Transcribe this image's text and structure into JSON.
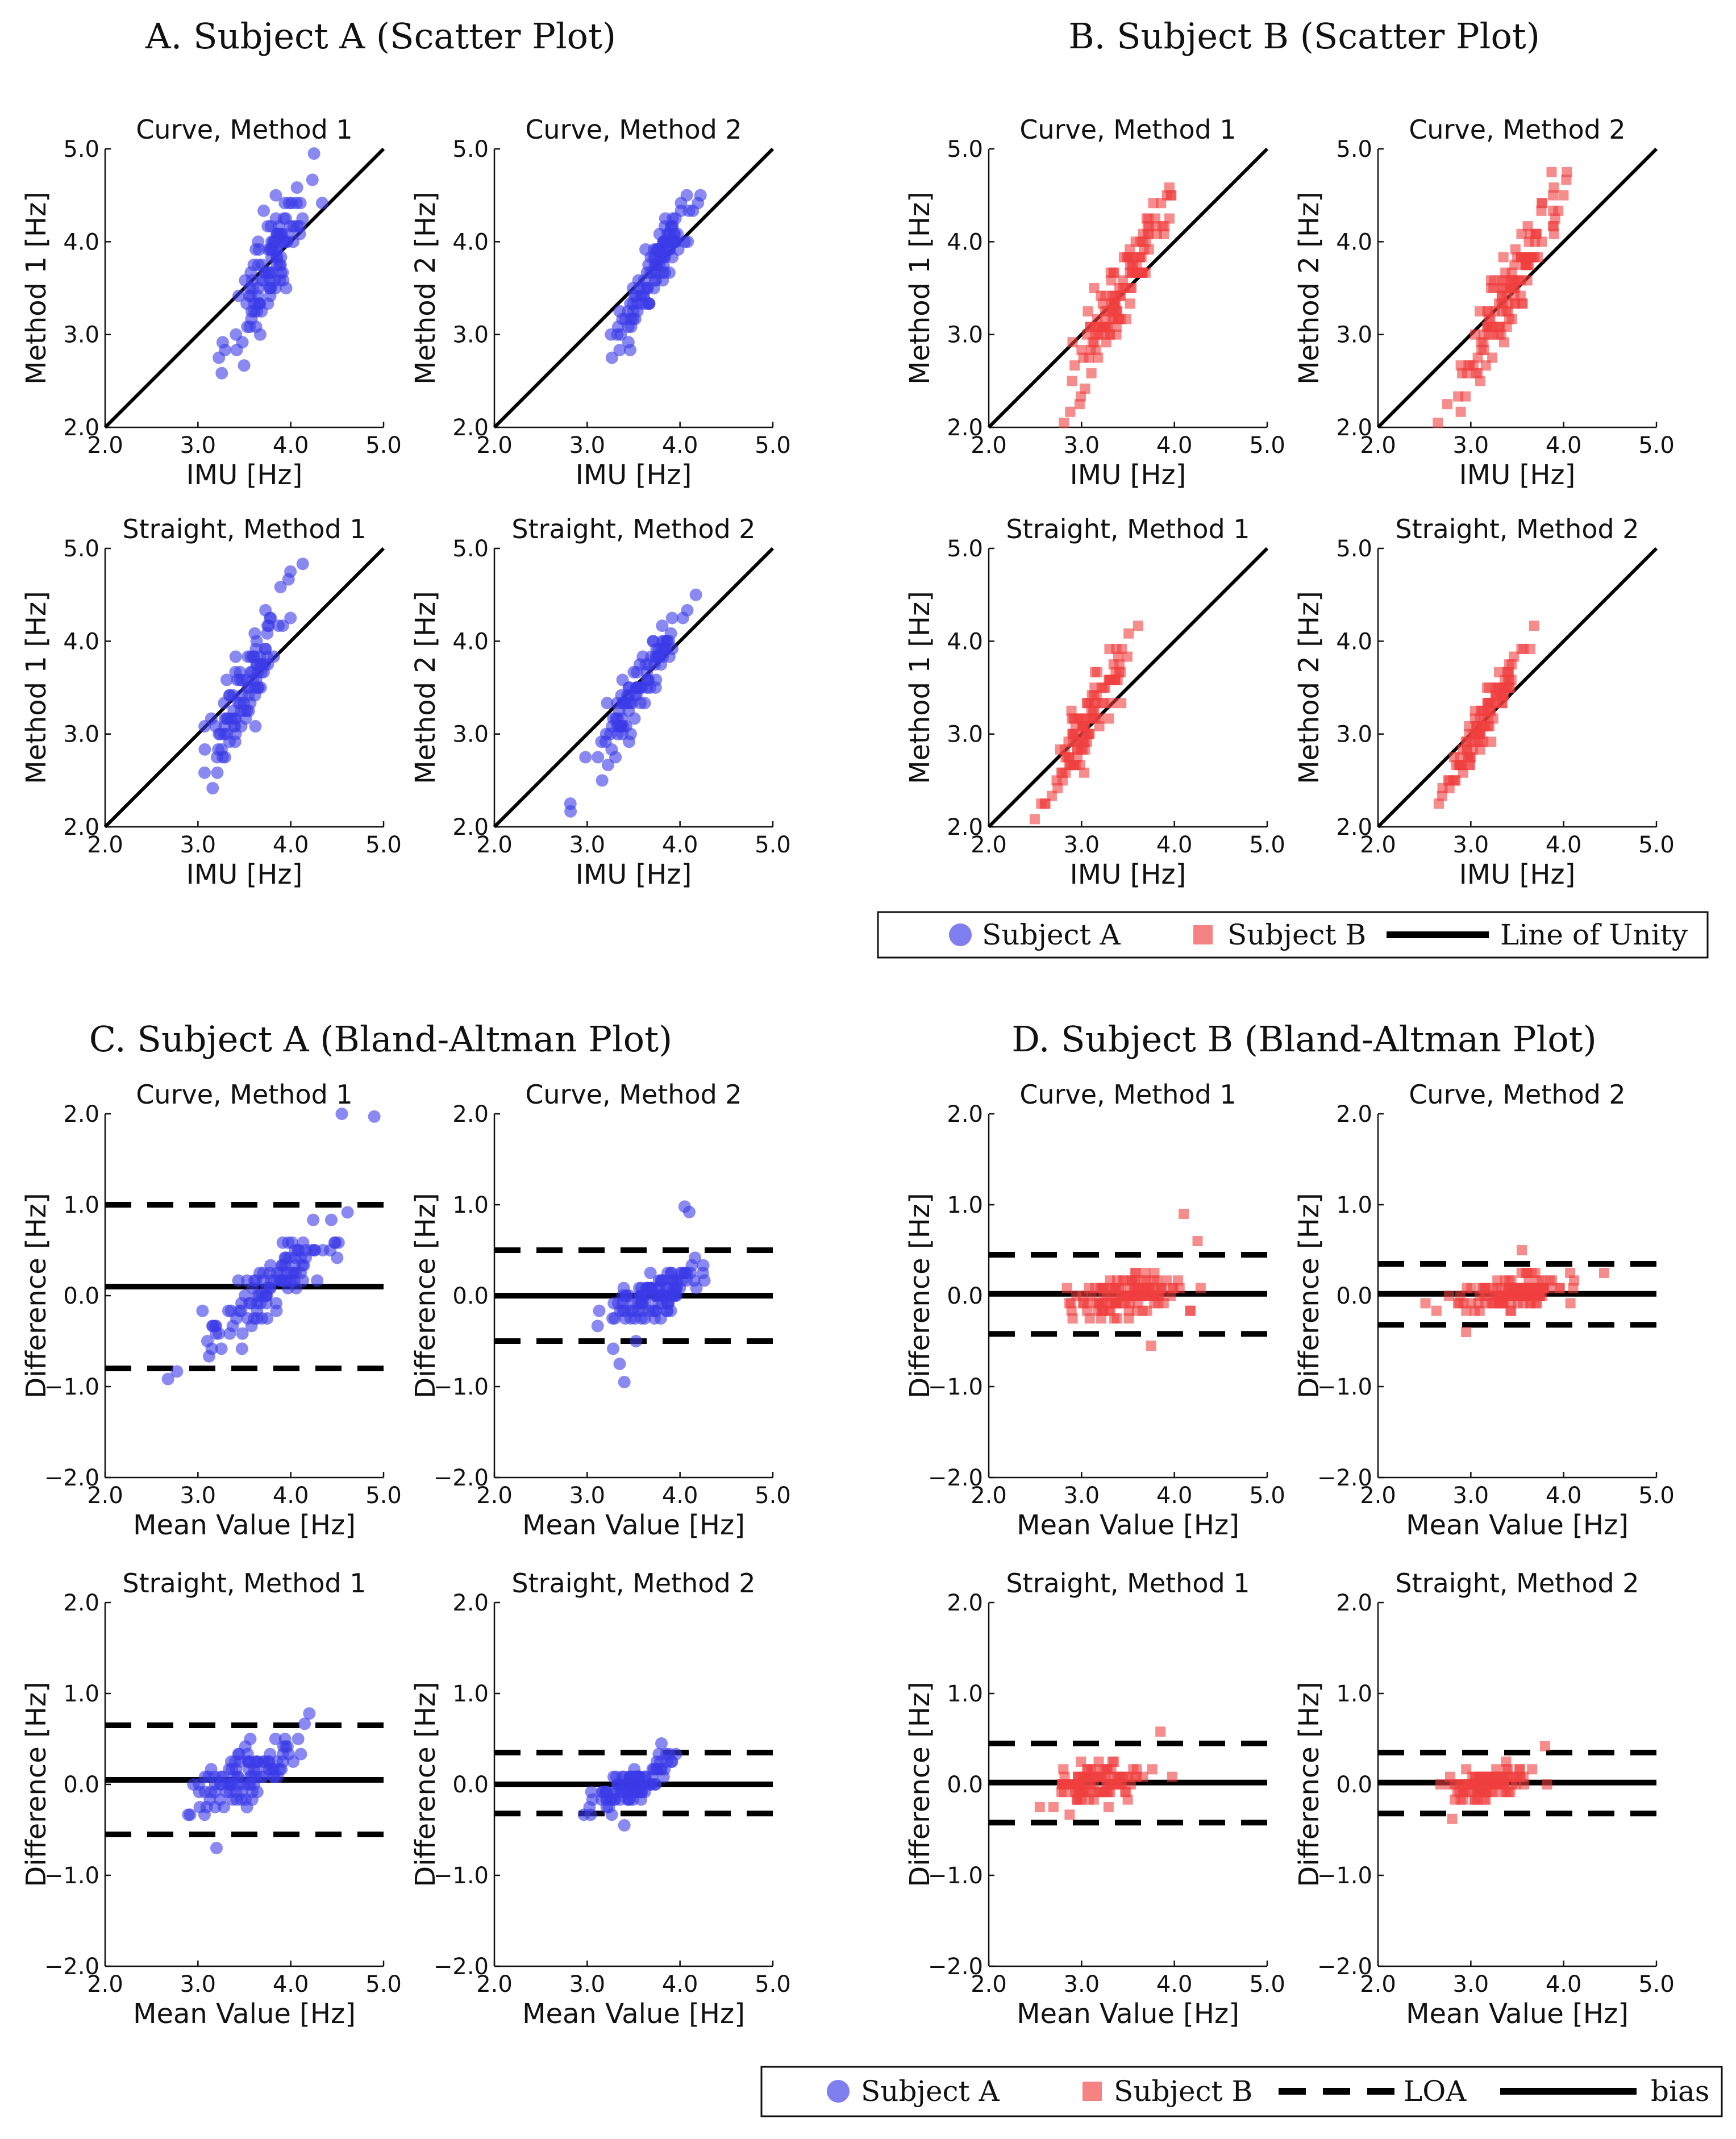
{
  "colors": {
    "subject_a": "#3a3ae8",
    "subject_b": "#f04040",
    "line": "#000000"
  },
  "chart_data": [
    {
      "id": "A",
      "title": "A. Subject A (Scatter Plot)",
      "type": "scatter",
      "subject": "A",
      "panels": [
        {
          "title": "Curve, Method 1",
          "xlabel": "IMU [Hz]",
          "ylabel": "Method 1 [Hz]",
          "xlim": [
            2.0,
            5.0
          ],
          "ylim": [
            2.0,
            5.0
          ],
          "xticks": [
            "2.0",
            "3.0",
            "4.0",
            "5.0"
          ],
          "yticks": [
            "2.0",
            "3.0",
            "4.0",
            "5.0"
          ],
          "unity": true,
          "cx": 3.75,
          "cy": 3.7,
          "sx": 0.22,
          "sy": 0.45,
          "n": 110,
          "seed": 11
        },
        {
          "title": "Curve, Method 2",
          "xlabel": "IMU [Hz]",
          "ylabel": "Method 2 [Hz]",
          "xlim": [
            2.0,
            5.0
          ],
          "ylim": [
            2.0,
            5.0
          ],
          "xticks": [
            "2.0",
            "3.0",
            "4.0",
            "5.0"
          ],
          "yticks": [
            "2.0",
            "3.0",
            "4.0",
            "5.0"
          ],
          "unity": true,
          "cx": 3.75,
          "cy": 3.75,
          "sx": 0.2,
          "sy": 0.3,
          "n": 110,
          "seed": 12
        },
        {
          "title": "Straight, Method 1",
          "xlabel": "IMU [Hz]",
          "ylabel": "Method 1 [Hz]",
          "xlim": [
            2.0,
            5.0
          ],
          "ylim": [
            2.0,
            5.0
          ],
          "xticks": [
            "2.0",
            "3.0",
            "4.0",
            "5.0"
          ],
          "yticks": [
            "2.0",
            "3.0",
            "4.0",
            "5.0"
          ],
          "unity": true,
          "cx": 3.5,
          "cy": 3.5,
          "sx": 0.22,
          "sy": 0.4,
          "n": 100,
          "seed": 13
        },
        {
          "title": "Straight, Method 2",
          "xlabel": "IMU [Hz]",
          "ylabel": "Method 2 [Hz]",
          "xlim": [
            2.0,
            5.0
          ],
          "ylim": [
            2.0,
            5.0
          ],
          "xticks": [
            "2.0",
            "3.0",
            "4.0",
            "5.0"
          ],
          "yticks": [
            "2.0",
            "3.0",
            "4.0",
            "5.0"
          ],
          "unity": true,
          "cx": 3.55,
          "cy": 3.5,
          "sx": 0.22,
          "sy": 0.3,
          "n": 100,
          "seed": 14
        }
      ]
    },
    {
      "id": "B",
      "title": "B. Subject B (Scatter Plot)",
      "type": "scatter",
      "subject": "B",
      "panels": [
        {
          "title": "Curve, Method 1",
          "xlabel": "IMU [Hz]",
          "ylabel": "Method 1 [Hz]",
          "xlim": [
            2.0,
            5.0
          ],
          "ylim": [
            2.0,
            5.0
          ],
          "xticks": [
            "2.0",
            "3.0",
            "4.0",
            "5.0"
          ],
          "yticks": [
            "2.0",
            "3.0",
            "4.0",
            "5.0"
          ],
          "unity": true,
          "cx": 3.4,
          "cy": 3.45,
          "sx": 0.28,
          "sy": 0.38,
          "n": 130,
          "seed": 21
        },
        {
          "title": "Curve, Method 2",
          "xlabel": "IMU [Hz]",
          "ylabel": "Method 2 [Hz]",
          "xlim": [
            2.0,
            5.0
          ],
          "ylim": [
            2.0,
            5.0
          ],
          "xticks": [
            "2.0",
            "3.0",
            "4.0",
            "5.0"
          ],
          "yticks": [
            "2.0",
            "3.0",
            "4.0",
            "5.0"
          ],
          "unity": true,
          "cx": 3.4,
          "cy": 3.45,
          "sx": 0.28,
          "sy": 0.33,
          "n": 130,
          "seed": 22
        },
        {
          "title": "Straight, Method 1",
          "xlabel": "IMU [Hz]",
          "ylabel": "Method 1 [Hz]",
          "xlim": [
            2.0,
            5.0
          ],
          "ylim": [
            2.0,
            5.0
          ],
          "xticks": [
            "2.0",
            "3.0",
            "4.0",
            "5.0"
          ],
          "yticks": [
            "2.0",
            "3.0",
            "4.0",
            "5.0"
          ],
          "unity": true,
          "cx": 3.1,
          "cy": 3.2,
          "sx": 0.22,
          "sy": 0.3,
          "n": 110,
          "seed": 23
        },
        {
          "title": "Straight, Method 2",
          "xlabel": "IMU [Hz]",
          "ylabel": "Method 2 [Hz]",
          "xlim": [
            2.0,
            5.0
          ],
          "ylim": [
            2.0,
            5.0
          ],
          "xticks": [
            "2.0",
            "3.0",
            "4.0",
            "5.0"
          ],
          "yticks": [
            "2.0",
            "3.0",
            "4.0",
            "5.0"
          ],
          "unity": true,
          "cx": 3.15,
          "cy": 3.15,
          "sx": 0.22,
          "sy": 0.25,
          "n": 110,
          "seed": 24
        }
      ]
    },
    {
      "id": "C",
      "title": "C. Subject A (Bland-Altman Plot)",
      "type": "scatter",
      "subject": "A",
      "panels": [
        {
          "title": "Curve, Method 1",
          "xlabel": "Mean Value [Hz]",
          "ylabel": "Difference [Hz]",
          "xlim": [
            2.0,
            5.0
          ],
          "ylim": [
            -2.0,
            2.0
          ],
          "xticks": [
            "2.0",
            "3.0",
            "4.0",
            "5.0"
          ],
          "yticks": [
            "−2.0",
            "−1.0",
            "0.0",
            "1.0",
            "2.0"
          ],
          "bias": 0.1,
          "loa": [
            -0.8,
            1.0
          ],
          "cx": 3.8,
          "cy": 0.1,
          "sx": 0.32,
          "sy": 0.3,
          "n": 110,
          "seed": 31,
          "extra_points": [
            [
              4.55,
              2.0
            ],
            [
              4.9,
              1.97
            ]
          ]
        },
        {
          "title": "Curve, Method 2",
          "xlabel": "Mean Value [Hz]",
          "ylabel": "Difference [Hz]",
          "xlim": [
            2.0,
            5.0
          ],
          "ylim": [
            -2.0,
            2.0
          ],
          "xticks": [
            "2.0",
            "3.0",
            "4.0",
            "5.0"
          ],
          "yticks": [
            "−2.0",
            "−1.0",
            "0.0",
            "1.0",
            "2.0"
          ],
          "bias": 0.0,
          "loa": [
            -0.5,
            0.5
          ],
          "cx": 3.75,
          "cy": 0.0,
          "sx": 0.22,
          "sy": 0.2,
          "n": 110,
          "seed": 32,
          "extra_points": [
            [
              3.35,
              -0.75
            ],
            [
              3.4,
              -0.95
            ],
            [
              4.05,
              0.98
            ],
            [
              4.1,
              0.92
            ]
          ]
        },
        {
          "title": "Straight, Method 1",
          "xlabel": "Mean Value [Hz]",
          "ylabel": "Difference [Hz]",
          "xlim": [
            2.0,
            5.0
          ],
          "ylim": [
            -2.0,
            2.0
          ],
          "xticks": [
            "2.0",
            "3.0",
            "4.0",
            "5.0"
          ],
          "yticks": [
            "−2.0",
            "−1.0",
            "0.0",
            "1.0",
            "2.0"
          ],
          "bias": 0.05,
          "loa": [
            -0.55,
            0.65
          ],
          "cx": 3.5,
          "cy": 0.05,
          "sx": 0.28,
          "sy": 0.25,
          "n": 100,
          "seed": 33,
          "extra_points": [
            [
              4.2,
              0.78
            ],
            [
              3.2,
              -0.7
            ]
          ]
        },
        {
          "title": "Straight, Method 2",
          "xlabel": "Mean Value [Hz]",
          "ylabel": "Difference [Hz]",
          "xlim": [
            2.0,
            5.0
          ],
          "ylim": [
            -2.0,
            2.0
          ],
          "xticks": [
            "2.0",
            "3.0",
            "4.0",
            "5.0"
          ],
          "yticks": [
            "−2.0",
            "−1.0",
            "0.0",
            "1.0",
            "2.0"
          ],
          "bias": 0.0,
          "loa": [
            -0.32,
            0.35
          ],
          "cx": 3.5,
          "cy": 0.0,
          "sx": 0.22,
          "sy": 0.14,
          "n": 100,
          "seed": 34,
          "extra_points": [
            [
              3.8,
              0.45
            ],
            [
              3.4,
              -0.45
            ]
          ]
        }
      ]
    },
    {
      "id": "D",
      "title": "D. Subject B (Bland-Altman Plot)",
      "type": "scatter",
      "subject": "B",
      "panels": [
        {
          "title": "Curve, Method 1",
          "xlabel": "Mean Value [Hz]",
          "ylabel": "Difference [Hz]",
          "xlim": [
            2.0,
            5.0
          ],
          "ylim": [
            -2.0,
            2.0
          ],
          "xticks": [
            "2.0",
            "3.0",
            "4.0",
            "5.0"
          ],
          "yticks": [
            "−2.0",
            "−1.0",
            "0.0",
            "1.0",
            "2.0"
          ],
          "bias": 0.02,
          "loa": [
            -0.42,
            0.45
          ],
          "cx": 3.5,
          "cy": 0.02,
          "sx": 0.3,
          "sy": 0.17,
          "n": 130,
          "seed": 41,
          "extra_points": [
            [
              4.1,
              0.9
            ],
            [
              4.25,
              0.6
            ],
            [
              3.75,
              -0.55
            ]
          ]
        },
        {
          "title": "Curve, Method 2",
          "xlabel": "Mean Value [Hz]",
          "ylabel": "Difference [Hz]",
          "xlim": [
            2.0,
            5.0
          ],
          "ylim": [
            -2.0,
            2.0
          ],
          "xticks": [
            "2.0",
            "3.0",
            "4.0",
            "5.0"
          ],
          "yticks": [
            "−2.0",
            "−1.0",
            "0.0",
            "1.0",
            "2.0"
          ],
          "bias": 0.02,
          "loa": [
            -0.32,
            0.35
          ],
          "cx": 3.45,
          "cy": 0.02,
          "sx": 0.3,
          "sy": 0.13,
          "n": 130,
          "seed": 42,
          "extra_points": [
            [
              3.55,
              0.5
            ],
            [
              2.95,
              -0.4
            ]
          ]
        },
        {
          "title": "Straight, Method 1",
          "xlabel": "Mean Value [Hz]",
          "ylabel": "Difference [Hz]",
          "xlim": [
            2.0,
            5.0
          ],
          "ylim": [
            -2.0,
            2.0
          ],
          "xticks": [
            "2.0",
            "3.0",
            "4.0",
            "5.0"
          ],
          "yticks": [
            "−2.0",
            "−1.0",
            "0.0",
            "1.0",
            "2.0"
          ],
          "bias": 0.02,
          "loa": [
            -0.42,
            0.45
          ],
          "cx": 3.15,
          "cy": 0.02,
          "sx": 0.25,
          "sy": 0.17,
          "n": 110,
          "seed": 43,
          "extra_points": [
            [
              3.85,
              0.58
            ],
            [
              2.55,
              -0.25
            ]
          ]
        },
        {
          "title": "Straight, Method 2",
          "xlabel": "Mean Value [Hz]",
          "ylabel": "Difference [Hz]",
          "xlim": [
            2.0,
            5.0
          ],
          "ylim": [
            -2.0,
            2.0
          ],
          "xticks": [
            "2.0",
            "3.0",
            "4.0",
            "5.0"
          ],
          "yticks": [
            "−2.0",
            "−1.0",
            "0.0",
            "1.0",
            "2.0"
          ],
          "bias": 0.02,
          "loa": [
            -0.32,
            0.35
          ],
          "cx": 3.2,
          "cy": 0.02,
          "sx": 0.22,
          "sy": 0.13,
          "n": 110,
          "seed": 44,
          "extra_points": [
            [
              3.8,
              0.42
            ],
            [
              2.8,
              -0.38
            ]
          ]
        }
      ]
    }
  ],
  "legend_top": {
    "subject_a": "Subject A",
    "subject_b": "Subject B",
    "unity": "Line of Unity"
  },
  "legend_bottom": {
    "subject_a": "Subject A",
    "subject_b": "Subject B",
    "loa": "LOA",
    "bias": "bias"
  }
}
